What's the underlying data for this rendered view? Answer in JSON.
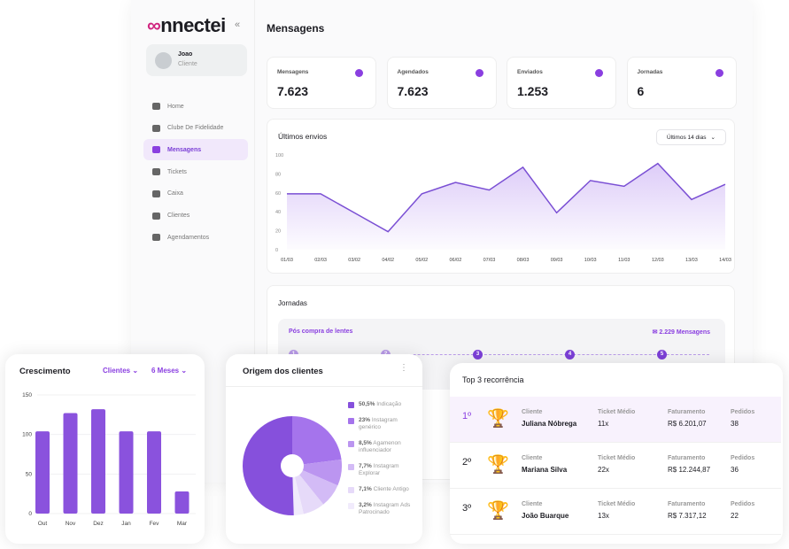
{
  "app": {
    "logo": "connectei",
    "page_title": "Mensagens"
  },
  "user": {
    "name": "Joao",
    "role": "Cliente"
  },
  "sidebar": {
    "items": [
      {
        "label": "Home"
      },
      {
        "label": "Clube De Fidelidade"
      },
      {
        "label": "Mensagens",
        "active": true
      },
      {
        "label": "Tickets"
      },
      {
        "label": "Caixa"
      },
      {
        "label": "Clientes"
      },
      {
        "label": "Agendamentos"
      }
    ]
  },
  "stats": [
    {
      "label": "Mensagens",
      "value": "7.623",
      "icon": "chat-icon"
    },
    {
      "label": "Agendados",
      "value": "7.623",
      "icon": "calendar-icon"
    },
    {
      "label": "Enviados",
      "value": "1.253",
      "icon": "send-icon"
    },
    {
      "label": "Jornadas",
      "value": "6",
      "icon": "person-icon"
    }
  ],
  "envios": {
    "title": "Últimos envios",
    "filter": "Últimos 14 dias"
  },
  "jornadas": {
    "title": "Jornadas",
    "name": "Pós compra de lentes",
    "count": "2.229 Mensagens",
    "steps": [
      "1",
      "2",
      "3",
      "4",
      "5"
    ]
  },
  "colors": {
    "accent": "#8a3fe0"
  },
  "chart_data": [
    {
      "type": "area",
      "title": "Últimos envios",
      "x": [
        "01/03",
        "02/03",
        "03/02",
        "04/02",
        "05/02",
        "06/02",
        "07/03",
        "08/03",
        "09/03",
        "10/03",
        "11/03",
        "12/03",
        "13/03",
        "14/03"
      ],
      "values": [
        59,
        59,
        39,
        19,
        59,
        71,
        63,
        87,
        39,
        73,
        67,
        91,
        53,
        69
      ],
      "yticks": [
        "0",
        "20",
        "40",
        "60",
        "80",
        "100"
      ],
      "ylim": [
        0,
        100
      ]
    },
    {
      "type": "bar",
      "title": "Crescimento",
      "filters": [
        "Clientes",
        "6 Meses"
      ],
      "categories": [
        "Out",
        "Nov",
        "Dez",
        "Jan",
        "Fev",
        "Mar"
      ],
      "values": [
        104,
        127,
        132,
        104,
        104,
        28
      ],
      "yticks": [
        "0",
        "50",
        "100",
        "150"
      ],
      "ylim": [
        0,
        150
      ]
    },
    {
      "type": "pie",
      "title": "Origem dos clientes",
      "slices": [
        {
          "pct": "23%",
          "label": "Instagram genérico",
          "value": 23,
          "color": "#a574ec"
        },
        {
          "pct": "8,5%",
          "label": "Agamenon influenciador",
          "value": 8.5,
          "color": "#bb95f0"
        },
        {
          "pct": "7,7%",
          "label": "Instagram Explorar",
          "value": 7.7,
          "color": "#d3bbf6"
        },
        {
          "pct": "7,1%",
          "label": "Cliente Antigo",
          "value": 7.1,
          "color": "#e6daf9"
        },
        {
          "pct": "3,2%",
          "label": "Instagram Ads Patrocinado",
          "value": 3.2,
          "color": "#f1ebfc"
        },
        {
          "pct": "50,5%",
          "label": "Indicação",
          "value": 50.5,
          "color": "#8650dc"
        }
      ]
    }
  ],
  "pie_legend_order": [
    5,
    0,
    1,
    2,
    3,
    4
  ],
  "top3": {
    "title": "Top 3 recorrência",
    "headers": {
      "client": "Cliente",
      "ticket": "Ticket Médio",
      "revenue": "Faturamento",
      "orders": "Pedidos"
    },
    "rows": [
      {
        "rank": "1º",
        "name": "Juliana Nóbrega",
        "ticket": "11x",
        "revenue": "R$ 6.201,07",
        "orders": "38",
        "trophy": "🏆"
      },
      {
        "rank": "2º",
        "name": "Mariana Silva",
        "ticket": "22x",
        "revenue": "R$ 12.244,87",
        "orders": "36",
        "trophy": "🏆"
      },
      {
        "rank": "3º",
        "name": "João Buarque",
        "ticket": "13x",
        "revenue": "R$ 7.317,12",
        "orders": "22",
        "trophy": "🏆"
      }
    ]
  }
}
